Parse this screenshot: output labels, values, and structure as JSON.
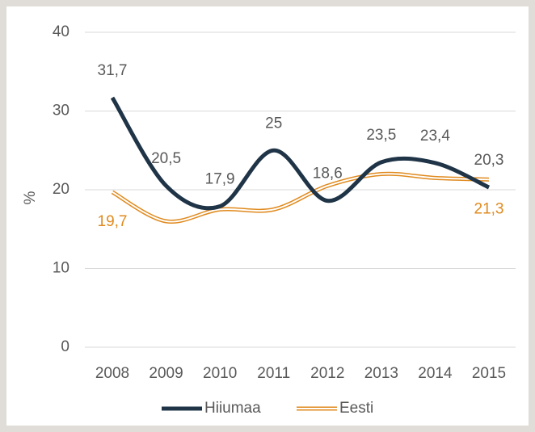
{
  "chart_data": {
    "type": "line",
    "categories": [
      "2008",
      "2009",
      "2010",
      "2011",
      "2012",
      "2013",
      "2014",
      "2015"
    ],
    "y_label": "%",
    "series": [
      {
        "name": "Hiiumaa",
        "color": "#1f3447",
        "values": [
          31.7,
          20.5,
          17.9,
          25,
          18.6,
          23.5,
          23.4,
          20.3
        ],
        "value_labels": [
          "31,7",
          "20,5",
          "17,9",
          "25",
          "18,6",
          "23,5",
          "23,4",
          "20,3"
        ],
        "label_color": "#595959"
      },
      {
        "name": "Eesti",
        "color": "#e08a1e",
        "values": [
          19.7,
          16,
          17.5,
          17.5,
          20.5,
          22,
          21.5,
          21.3
        ],
        "value_labels": [
          "19,7",
          null,
          null,
          null,
          null,
          null,
          null,
          "21,3"
        ],
        "label_color": "#e08a1e"
      }
    ],
    "ylim": [
      0,
      40
    ],
    "yticks": [
      0,
      10,
      20,
      30,
      40
    ],
    "grid": true,
    "legend": "bottom"
  }
}
